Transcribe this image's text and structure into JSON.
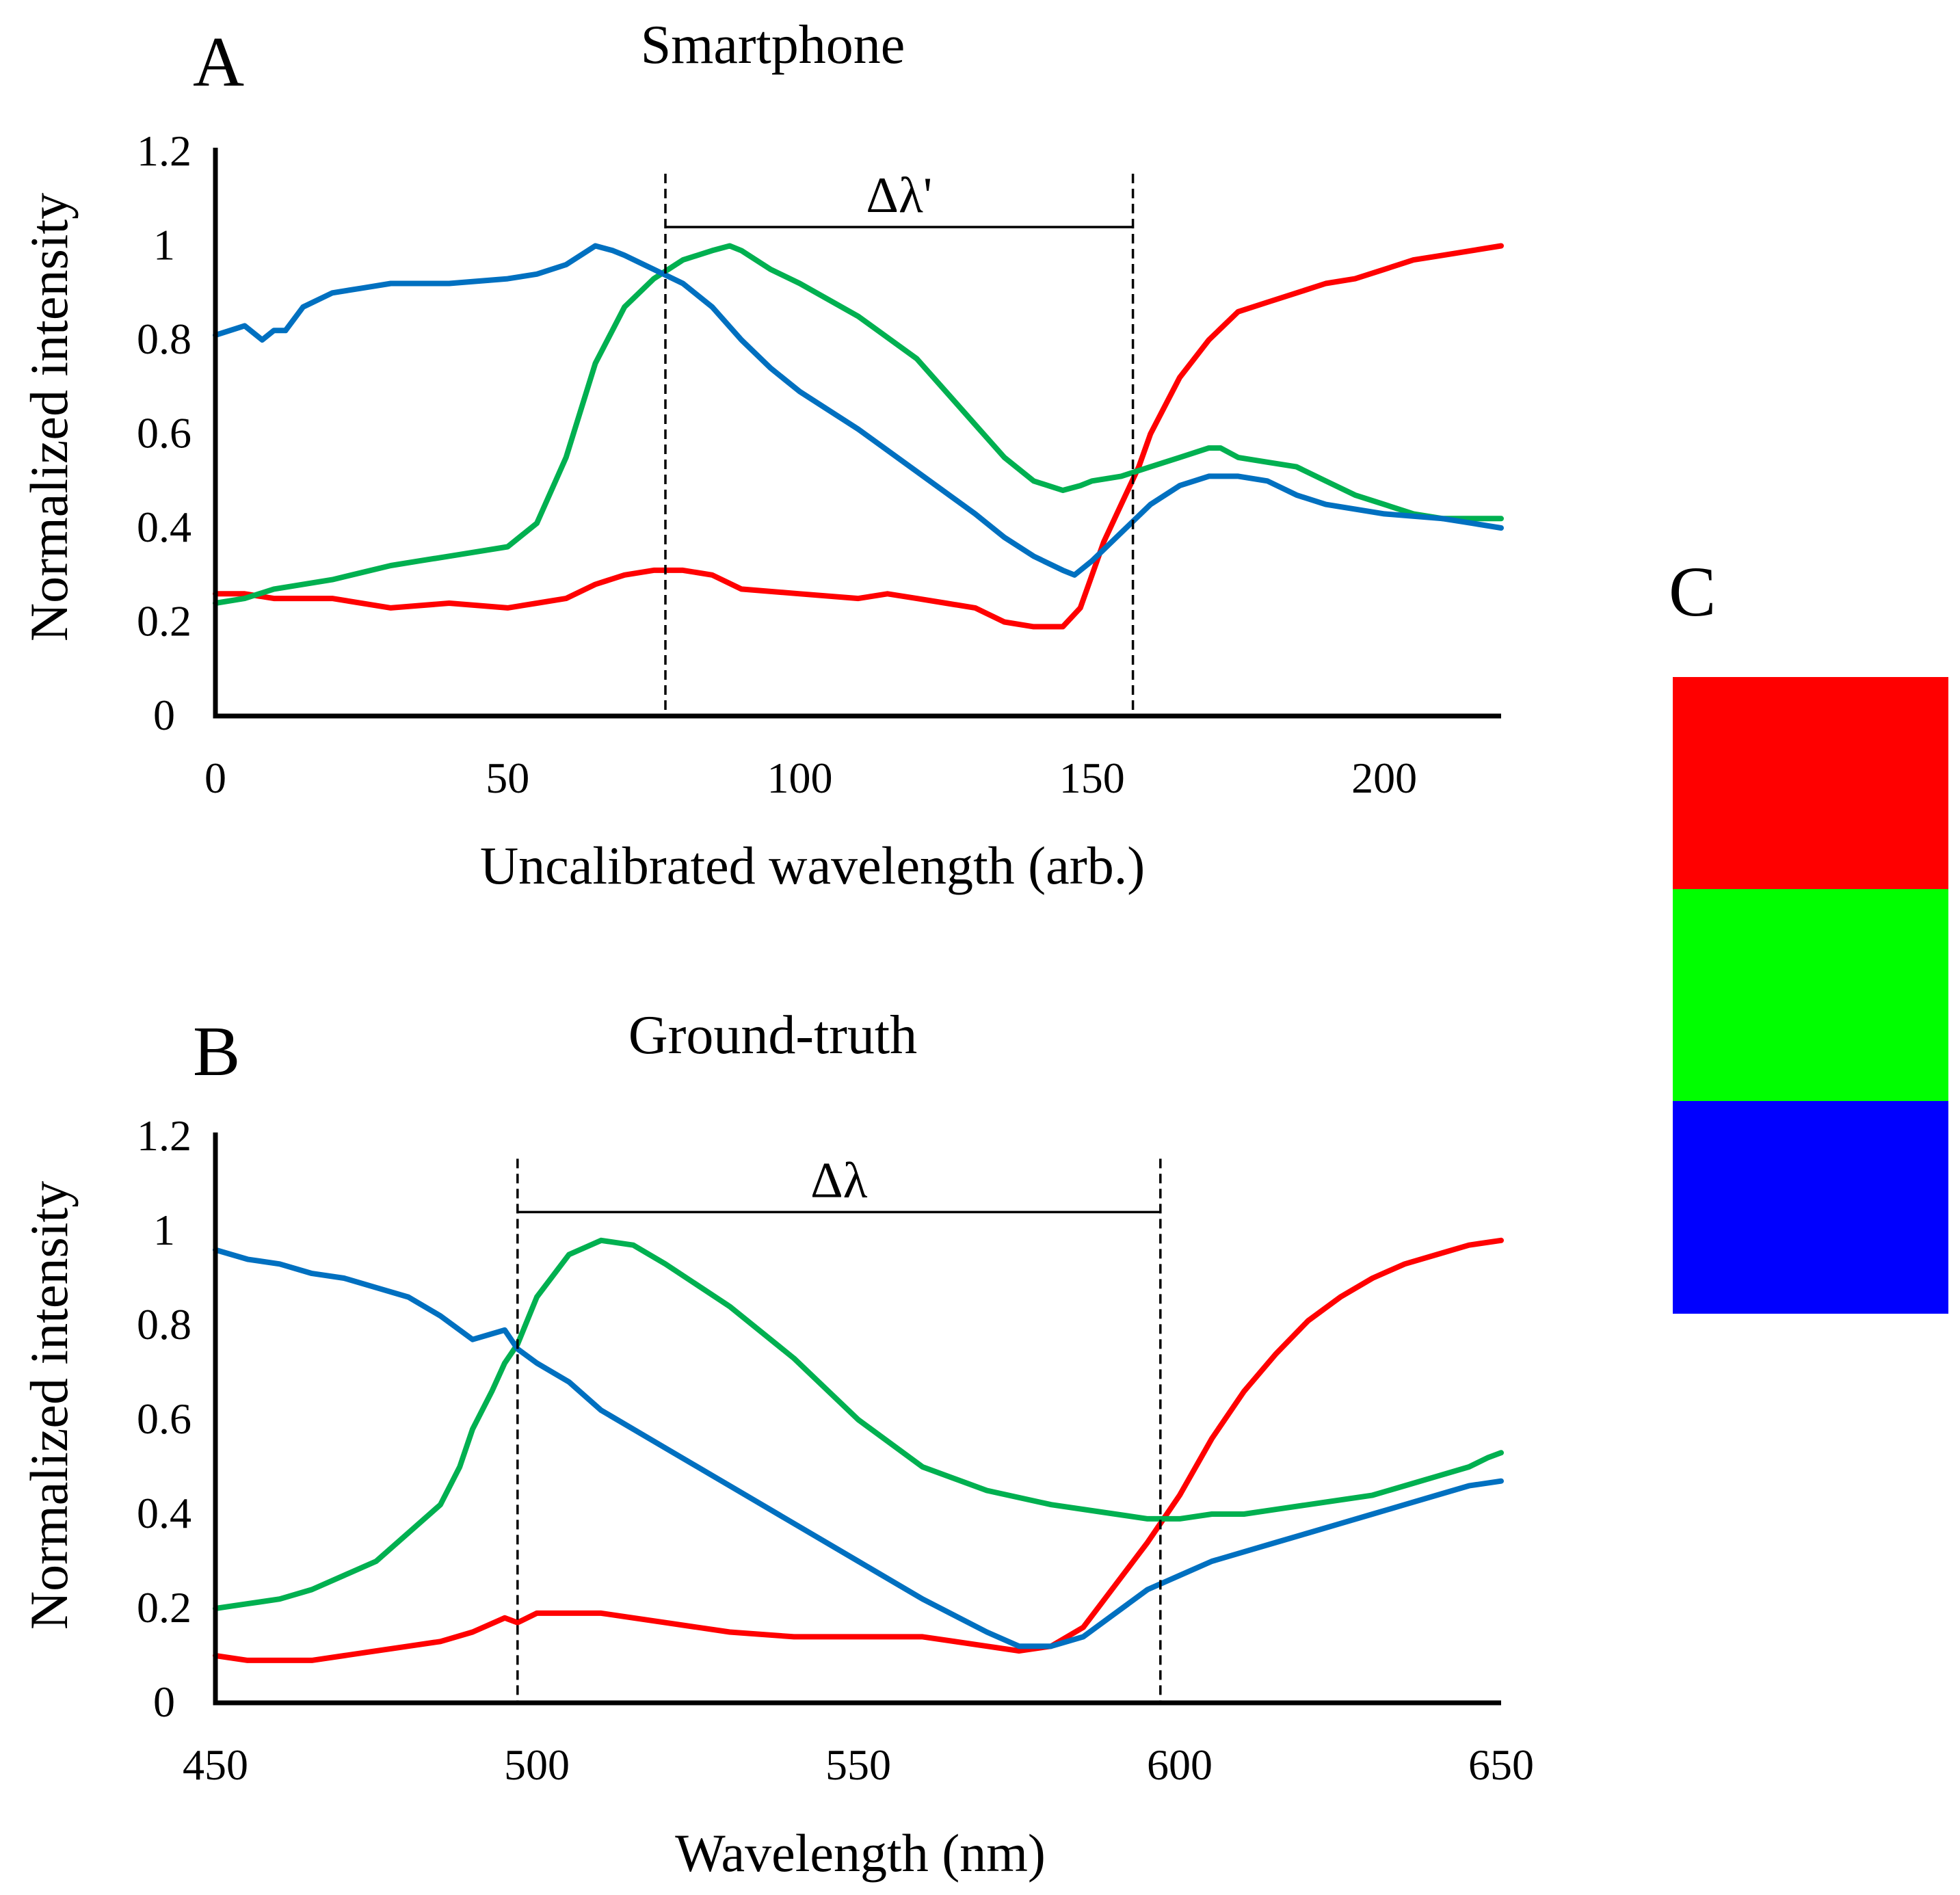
{
  "chart_data": [
    {
      "id": "A",
      "type": "line",
      "panel_label": "A",
      "title": "Smartphone",
      "xlabel": "Uncalibrated wavelength (arb.)",
      "ylabel": "Normalized intensity",
      "xlim": [
        0,
        220
      ],
      "ylim": [
        0,
        1.2
      ],
      "xticks": [
        0,
        50,
        100,
        150,
        200
      ],
      "yticks": [
        0,
        0.2,
        0.4,
        0.6,
        0.8,
        1,
        1.2
      ],
      "ytick_labels": [
        "0",
        "0.2",
        "0.4",
        "0.6",
        "0.8",
        "1",
        "1.2"
      ],
      "markers": [
        77,
        157
      ],
      "span_label": "Δλ'",
      "span_y": 1.04,
      "grid": false,
      "series": [
        {
          "name": "red",
          "color": "#ff0000",
          "x": [
            0,
            5,
            10,
            20,
            30,
            40,
            50,
            55,
            60,
            65,
            70,
            75,
            80,
            85,
            90,
            100,
            110,
            115,
            120,
            125,
            130,
            135,
            140,
            145,
            148,
            150,
            152,
            155,
            158,
            160,
            165,
            170,
            175,
            180,
            185,
            190,
            195,
            200,
            205,
            210,
            215,
            220
          ],
          "y": [
            0.26,
            0.26,
            0.25,
            0.25,
            0.23,
            0.24,
            0.23,
            0.24,
            0.25,
            0.28,
            0.3,
            0.31,
            0.31,
            0.3,
            0.27,
            0.26,
            0.25,
            0.26,
            0.25,
            0.24,
            0.23,
            0.2,
            0.19,
            0.19,
            0.23,
            0.3,
            0.37,
            0.45,
            0.53,
            0.6,
            0.72,
            0.8,
            0.86,
            0.88,
            0.9,
            0.92,
            0.93,
            0.95,
            0.97,
            0.98,
            0.99,
            1.0
          ]
        },
        {
          "name": "green",
          "color": "#00b050",
          "x": [
            0,
            5,
            10,
            20,
            30,
            35,
            40,
            45,
            50,
            55,
            60,
            65,
            70,
            75,
            80,
            85,
            88,
            90,
            95,
            100,
            110,
            120,
            130,
            135,
            140,
            145,
            148,
            150,
            155,
            160,
            165,
            170,
            172,
            175,
            180,
            185,
            190,
            195,
            200,
            205,
            210,
            215,
            220
          ],
          "y": [
            0.24,
            0.25,
            0.27,
            0.29,
            0.32,
            0.33,
            0.34,
            0.35,
            0.36,
            0.41,
            0.55,
            0.75,
            0.87,
            0.93,
            0.97,
            0.99,
            1.0,
            0.99,
            0.95,
            0.92,
            0.85,
            0.76,
            0.62,
            0.55,
            0.5,
            0.48,
            0.49,
            0.5,
            0.51,
            0.53,
            0.55,
            0.57,
            0.57,
            0.55,
            0.54,
            0.53,
            0.5,
            0.47,
            0.45,
            0.43,
            0.42,
            0.42,
            0.42
          ]
        },
        {
          "name": "blue",
          "color": "#0070c0",
          "x": [
            0,
            5,
            8,
            10,
            12,
            15,
            20,
            25,
            30,
            40,
            50,
            55,
            60,
            65,
            68,
            70,
            75,
            80,
            85,
            90,
            95,
            100,
            110,
            120,
            130,
            135,
            140,
            145,
            147,
            150,
            155,
            160,
            165,
            170,
            175,
            180,
            185,
            190,
            200,
            210,
            215,
            220
          ],
          "y": [
            0.81,
            0.83,
            0.8,
            0.82,
            0.82,
            0.87,
            0.9,
            0.91,
            0.92,
            0.92,
            0.93,
            0.94,
            0.96,
            1.0,
            0.99,
            0.98,
            0.95,
            0.92,
            0.87,
            0.8,
            0.74,
            0.69,
            0.61,
            0.52,
            0.43,
            0.38,
            0.34,
            0.31,
            0.3,
            0.33,
            0.39,
            0.45,
            0.49,
            0.51,
            0.51,
            0.5,
            0.47,
            0.45,
            0.43,
            0.42,
            0.41,
            0.4
          ]
        }
      ]
    },
    {
      "id": "B",
      "type": "line",
      "panel_label": "B",
      "title": "Ground-truth",
      "xlabel": "Wavelength (nm)",
      "ylabel": "Normalized intensity",
      "xlim": [
        450,
        650
      ],
      "ylim": [
        0,
        1.2
      ],
      "xticks": [
        450,
        500,
        550,
        600,
        650
      ],
      "yticks": [
        0,
        0.2,
        0.4,
        0.6,
        0.8,
        1,
        1.2
      ],
      "ytick_labels": [
        "0",
        "0.2",
        "0.4",
        "0.6",
        "0.8",
        "1",
        "1.2"
      ],
      "markers": [
        497,
        597
      ],
      "span_label": "Δλ",
      "span_y": 1.04,
      "grid": false,
      "series": [
        {
          "name": "red",
          "color": "#ff0000",
          "x": [
            450,
            455,
            460,
            465,
            470,
            475,
            480,
            485,
            490,
            495,
            497,
            500,
            505,
            510,
            515,
            520,
            530,
            540,
            550,
            560,
            570,
            575,
            580,
            585,
            590,
            595,
            600,
            605,
            610,
            615,
            620,
            625,
            630,
            635,
            640,
            645,
            650
          ],
          "y": [
            0.1,
            0.09,
            0.09,
            0.09,
            0.1,
            0.11,
            0.12,
            0.13,
            0.15,
            0.18,
            0.17,
            0.19,
            0.19,
            0.19,
            0.18,
            0.17,
            0.15,
            0.14,
            0.14,
            0.14,
            0.12,
            0.11,
            0.12,
            0.16,
            0.25,
            0.34,
            0.44,
            0.56,
            0.66,
            0.74,
            0.81,
            0.86,
            0.9,
            0.93,
            0.95,
            0.97,
            0.98
          ]
        },
        {
          "name": "green",
          "color": "#00b050",
          "x": [
            450,
            455,
            460,
            465,
            470,
            475,
            480,
            485,
            488,
            490,
            493,
            495,
            497,
            500,
            505,
            510,
            515,
            520,
            530,
            540,
            550,
            560,
            570,
            580,
            590,
            595,
            600,
            605,
            610,
            615,
            620,
            625,
            630,
            635,
            640,
            645,
            648,
            650
          ],
          "y": [
            0.2,
            0.21,
            0.22,
            0.24,
            0.27,
            0.3,
            0.36,
            0.42,
            0.5,
            0.58,
            0.66,
            0.72,
            0.76,
            0.86,
            0.95,
            0.98,
            0.97,
            0.93,
            0.84,
            0.73,
            0.6,
            0.5,
            0.45,
            0.42,
            0.4,
            0.39,
            0.39,
            0.4,
            0.4,
            0.41,
            0.42,
            0.43,
            0.44,
            0.46,
            0.48,
            0.5,
            0.52,
            0.53
          ]
        },
        {
          "name": "blue",
          "color": "#0070c0",
          "x": [
            450,
            455,
            460,
            465,
            470,
            475,
            480,
            485,
            490,
            495,
            497,
            500,
            505,
            510,
            520,
            530,
            540,
            550,
            560,
            570,
            575,
            580,
            585,
            590,
            595,
            600,
            605,
            610,
            615,
            620,
            625,
            630,
            635,
            640,
            645,
            650
          ],
          "y": [
            0.96,
            0.94,
            0.93,
            0.91,
            0.9,
            0.88,
            0.86,
            0.82,
            0.77,
            0.79,
            0.75,
            0.72,
            0.68,
            0.62,
            0.54,
            0.46,
            0.38,
            0.3,
            0.22,
            0.15,
            0.12,
            0.12,
            0.14,
            0.19,
            0.24,
            0.27,
            0.3,
            0.32,
            0.34,
            0.36,
            0.38,
            0.4,
            0.42,
            0.44,
            0.46,
            0.47
          ]
        }
      ]
    }
  ],
  "legend": {
    "label": "C",
    "swatches": [
      {
        "name": "red",
        "color": "#ff0000"
      },
      {
        "name": "green",
        "color": "#00ff00"
      },
      {
        "name": "blue",
        "color": "#0000ff"
      }
    ]
  }
}
